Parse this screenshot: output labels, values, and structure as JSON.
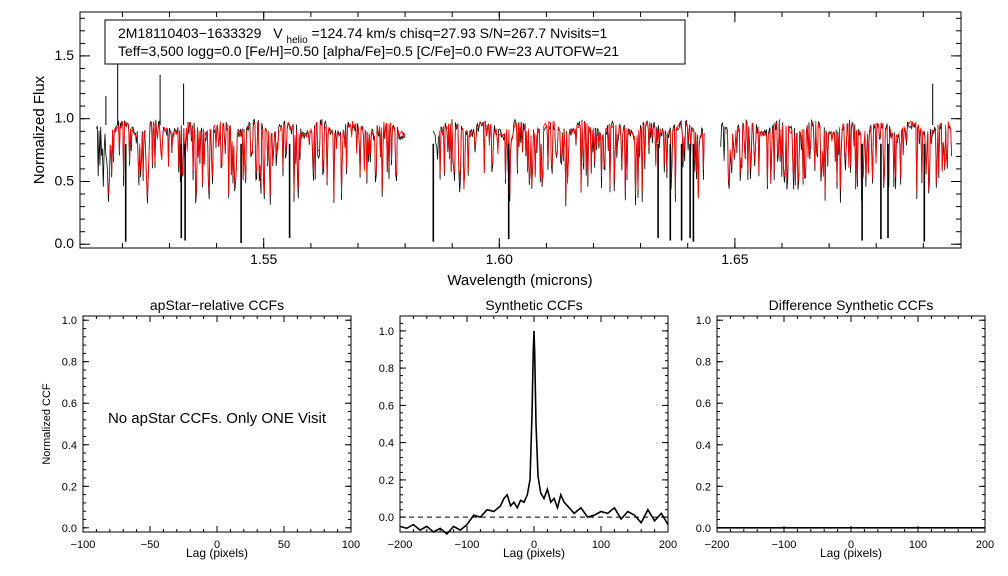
{
  "colors": {
    "observed": "#000000",
    "model": "#ff0000",
    "axis": "#000000",
    "reference": "#000000"
  },
  "chart_data": [
    {
      "id": "spectrum",
      "type": "line",
      "xlabel": "Wavelength (microns)",
      "ylabel": "Normalized Flux",
      "xlim": [
        1.511,
        1.698
      ],
      "ylim": [
        -0.03,
        1.85
      ],
      "xticks": [
        1.55,
        1.6,
        1.65
      ],
      "xtick_labels": [
        "1.55",
        "1.60",
        "1.65"
      ],
      "yticks": [
        0.0,
        0.5,
        1.0,
        1.5
      ],
      "ytick_labels": [
        "0.0",
        "0.5",
        "1.0",
        "1.5"
      ],
      "chip_ranges": [
        [
          1.5145,
          1.58
        ],
        [
          1.586,
          1.6435
        ],
        [
          1.647,
          1.696
        ]
      ],
      "continuum": 0.92,
      "deep_lines": [
        {
          "x": 1.5207,
          "y": 0.02
        },
        {
          "x": 1.5325,
          "y": 0.05
        },
        {
          "x": 1.5333,
          "y": 0.03
        },
        {
          "x": 1.5452,
          "y": 0.01
        },
        {
          "x": 1.5555,
          "y": 0.05
        },
        {
          "x": 1.586,
          "y": 0.02
        },
        {
          "x": 1.602,
          "y": 0.04
        },
        {
          "x": 1.6337,
          "y": 0.05
        },
        {
          "x": 1.6363,
          "y": 0.03
        },
        {
          "x": 1.6387,
          "y": 0.03
        },
        {
          "x": 1.6405,
          "y": 0.05
        },
        {
          "x": 1.6412,
          "y": 0.02
        },
        {
          "x": 1.677,
          "y": 0.03
        },
        {
          "x": 1.681,
          "y": 0.04
        },
        {
          "x": 1.6825,
          "y": 0.05
        },
        {
          "x": 1.6902,
          "y": 0.02
        }
      ],
      "spikes": [
        {
          "x": 1.519,
          "y": 1.45
        },
        {
          "x": 1.528,
          "y": 1.35
        },
        {
          "x": 1.533,
          "y": 1.28
        },
        {
          "x": 1.5165,
          "y": 1.18
        },
        {
          "x": 1.692,
          "y": 1.28
        }
      ],
      "legend": {
        "object": "2M18110403−1633329",
        "v_prefix": "V",
        "v_subscript": "helio",
        "v_rest": "=124.74 km/s  chisq=27.93  S/N=267.7  Nvisits=1",
        "params": "Teff=3,500 logg=0.0 [Fe/H]=0.50 [alpha/Fe]=0.5 [C/Fe]=0.0 FW=23 AUTOFW=21"
      }
    },
    {
      "id": "apstar_ccf",
      "type": "line",
      "title": "apStar−relative CCFs",
      "xlabel": "Lag (pixels)",
      "ylabel": "Normalized CCF",
      "xlim": [
        -100,
        100
      ],
      "ylim": [
        -0.02,
        1.02
      ],
      "xticks": [
        -100,
        -50,
        0,
        50,
        100
      ],
      "xtick_labels": [
        "−100",
        "−50",
        "0",
        "50",
        "100"
      ],
      "yticks": [
        0.0,
        0.2,
        0.4,
        0.6,
        0.8,
        1.0
      ],
      "ytick_labels": [
        "0.0",
        "0.2",
        "0.4",
        "0.6",
        "0.8",
        "1.0"
      ],
      "message": "No apStar CCFs.  Only ONE Visit",
      "series": []
    },
    {
      "id": "synthetic_ccf",
      "type": "line",
      "title": "Synthetic CCFs",
      "xlabel": "Lag (pixels)",
      "xlim": [
        -200,
        200
      ],
      "ylim": [
        -0.08,
        1.08
      ],
      "xticks": [
        -200,
        -100,
        0,
        100,
        200
      ],
      "xtick_labels": [
        "−200",
        "−100",
        "0",
        "100",
        "200"
      ],
      "yticks": [
        0.0,
        0.2,
        0.4,
        0.6,
        0.8,
        1.0
      ],
      "ytick_labels": [
        "0.0",
        "0.2",
        "0.4",
        "0.6",
        "0.8",
        "1.0"
      ],
      "reference_line": 0.0,
      "series": [
        {
          "name": "ccf",
          "x": [
            -200,
            -190,
            -180,
            -170,
            -160,
            -150,
            -140,
            -130,
            -120,
            -110,
            -100,
            -90,
            -80,
            -70,
            -60,
            -50,
            -45,
            -40,
            -35,
            -30,
            -25,
            -20,
            -15,
            -10,
            -6,
            -3,
            -1,
            0,
            1,
            3,
            6,
            10,
            15,
            20,
            25,
            30,
            35,
            40,
            45,
            50,
            60,
            70,
            80,
            90,
            100,
            110,
            120,
            130,
            140,
            150,
            160,
            170,
            180,
            190,
            200
          ],
          "y": [
            -0.05,
            -0.06,
            -0.04,
            -0.07,
            -0.05,
            -0.08,
            -0.06,
            -0.09,
            -0.05,
            -0.07,
            -0.04,
            0.01,
            0.0,
            0.04,
            0.03,
            0.06,
            0.1,
            0.12,
            0.06,
            0.08,
            0.05,
            0.09,
            0.08,
            0.12,
            0.2,
            0.55,
            0.9,
            1.0,
            0.88,
            0.5,
            0.22,
            0.13,
            0.1,
            0.15,
            0.08,
            0.1,
            0.05,
            0.12,
            0.08,
            0.06,
            0.02,
            0.05,
            0.0,
            0.01,
            0.03,
            0.02,
            0.05,
            -0.01,
            0.03,
            0.01,
            -0.03,
            0.04,
            -0.02,
            0.02,
            -0.04
          ]
        }
      ]
    },
    {
      "id": "difference_ccf",
      "type": "line",
      "title": "Difference Synthetic CCFs",
      "xlabel": "Lag (pixels)",
      "xlim": [
        -200,
        200
      ],
      "ylim": [
        -0.02,
        1.02
      ],
      "xticks": [
        -200,
        -100,
        0,
        100,
        200
      ],
      "xtick_labels": [
        "−200",
        "−100",
        "0",
        "100",
        "200"
      ],
      "yticks": [
        0.0,
        0.2,
        0.4,
        0.6,
        0.8,
        1.0
      ],
      "ytick_labels": [
        "0.0",
        "0.2",
        "0.4",
        "0.6",
        "0.8",
        "1.0"
      ],
      "series": [
        {
          "name": "diff",
          "x": [
            -200,
            200
          ],
          "y": [
            0.0,
            0.0
          ]
        }
      ]
    }
  ]
}
